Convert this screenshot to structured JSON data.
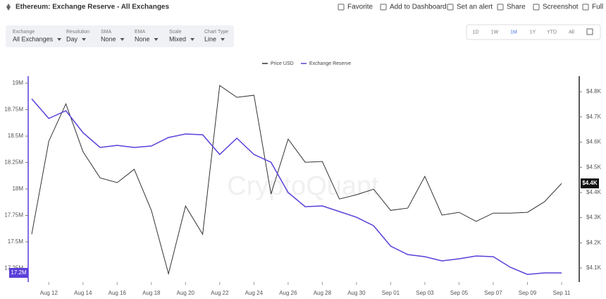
{
  "header": {
    "title": "Ethereum: Exchange Reserve - All Exchanges",
    "actions": [
      "Favorite",
      "Add to Dashboard",
      "Set an alert",
      "Share",
      "Screenshot",
      "Full"
    ]
  },
  "filters": [
    {
      "label": "Exchange",
      "value": "All Exchanges"
    },
    {
      "label": "Resolution",
      "value": "Day"
    },
    {
      "label": "SMA",
      "value": "None"
    },
    {
      "label": "EMA",
      "value": "None"
    },
    {
      "label": "Scale",
      "value": "Mixed"
    },
    {
      "label": "Chart Type",
      "value": "Line"
    }
  ],
  "ranges": [
    "1D",
    "1W",
    "1M",
    "1Y",
    "YTD",
    "All"
  ],
  "active_range": "1M",
  "chart_data": {
    "type": "line",
    "watermark": "CryptoQuant",
    "categories": [
      null,
      "Aug 12",
      null,
      "Aug 14",
      null,
      "Aug 16",
      null,
      "Aug 18",
      null,
      "Aug 20",
      null,
      "Aug 22",
      null,
      "Aug 24",
      null,
      "Aug 26",
      null,
      "Aug 28",
      null,
      "Aug 30",
      null,
      "Sep 01",
      null,
      "Sep 03",
      null,
      "Sep 05",
      null,
      "Sep 07",
      null,
      "Sep 09",
      null,
      "Sep 11"
    ],
    "series": [
      {
        "name": "Price USD",
        "color": "#333333",
        "axis": "y2",
        "values": [
          4234,
          4604,
          4752,
          4562,
          4458,
          4439,
          4492,
          4329,
          4077,
          4346,
          4234,
          4825,
          4778,
          4786,
          4394,
          4612,
          4520,
          4523,
          4374,
          4391,
          4413,
          4329,
          4338,
          4464,
          4310,
          4321,
          4285,
          4318,
          4318,
          4321,
          4363,
          4436
        ],
        "last_label": "$4.4K"
      },
      {
        "name": "Exchange Reserve",
        "color": "#5b3fd9",
        "axis": "y",
        "values": [
          18853000,
          18667000,
          18740000,
          18533000,
          18393000,
          18413000,
          18393000,
          18407000,
          18487000,
          18520000,
          18513000,
          18327000,
          18480000,
          18327000,
          18253000,
          17967000,
          17833000,
          17840000,
          17787000,
          17733000,
          17653000,
          17460000,
          17380000,
          17360000,
          17320000,
          17340000,
          17367000,
          17360000,
          17260000,
          17193000,
          17207000,
          17207000
        ],
        "last_label": "17.2M"
      }
    ],
    "ylim": [
      17120000,
      19067000
    ],
    "yticks": [
      {
        "value": 17250000,
        "label": "17.25M"
      },
      {
        "value": 17500000,
        "label": "17.5M"
      },
      {
        "value": 17750000,
        "label": "17.75M"
      },
      {
        "value": 18000000,
        "label": "18M"
      },
      {
        "value": 18250000,
        "label": "18.25M"
      },
      {
        "value": 18500000,
        "label": "18.5M"
      },
      {
        "value": 18750000,
        "label": "18.75M"
      },
      {
        "value": 19000000,
        "label": "19M"
      }
    ],
    "y2lim": [
      4044,
      4862
    ],
    "y2ticks": [
      {
        "value": 4100,
        "label": "$4.1K"
      },
      {
        "value": 4200,
        "label": "$4.2K"
      },
      {
        "value": 4300,
        "label": "$4.3K"
      },
      {
        "value": 4400,
        "label": "$4.4K"
      },
      {
        "value": 4500,
        "label": "$4.5K"
      },
      {
        "value": 4600,
        "label": "$4.6K"
      },
      {
        "value": 4700,
        "label": "$4.7K"
      },
      {
        "value": 4800,
        "label": "$4.8K"
      }
    ]
  }
}
